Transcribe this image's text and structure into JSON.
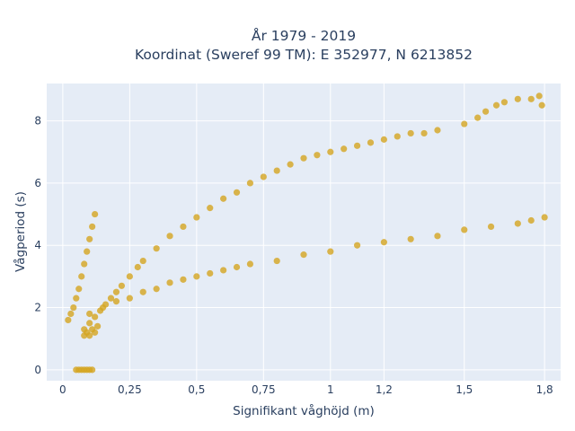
{
  "chart_data": {
    "type": "scatter",
    "title": "År 1979 - 2019",
    "subtitle": "Koordinat (Sweref 99 TM): E 352977, N 6213852",
    "xlabel": "Signifikant våghöjd (m)",
    "ylabel": "Vågperiod (s)",
    "xlim": [
      -0.06,
      1.86
    ],
    "ylim": [
      -0.35,
      9.2
    ],
    "x_ticks": [
      0,
      0.25,
      0.5,
      0.75,
      1,
      1.2,
      1.5,
      1.8
    ],
    "x_tick_labels": [
      "0",
      "0,25",
      "0,5",
      "0,75",
      "1",
      "1,2",
      "1,5",
      "1,8"
    ],
    "y_ticks": [
      0,
      2,
      4,
      6,
      8
    ],
    "y_tick_labels": [
      "0",
      "2",
      "4",
      "6",
      "8"
    ],
    "grid": true,
    "legend": "none",
    "marker_color": "#D4A520",
    "plot_bg": "#E5ECF6",
    "series": [
      {
        "note_points": "Representative sampled points across the dense clusters",
        "x": [
          0.02,
          0.03,
          0.04,
          0.05,
          0.06,
          0.07,
          0.08,
          0.09,
          0.1,
          0.11,
          0.12,
          0.05,
          0.06,
          0.07,
          0.08,
          0.09,
          0.1,
          0.11,
          0.08,
          0.1,
          0.12,
          0.14,
          0.16,
          0.18,
          0.2,
          0.22,
          0.25,
          0.28,
          0.3,
          0.35,
          0.4,
          0.45,
          0.5,
          0.55,
          0.6,
          0.65,
          0.7,
          0.75,
          0.8,
          0.85,
          0.9,
          0.95,
          1.0,
          1.05,
          1.1,
          1.15,
          1.2,
          1.25,
          1.3,
          1.35,
          1.4,
          0.1,
          0.15,
          0.2,
          0.25,
          0.3,
          0.35,
          0.4,
          0.45,
          0.5,
          0.55,
          0.6,
          0.65,
          0.7,
          0.8,
          0.9,
          1.0,
          1.1,
          1.2,
          1.3,
          1.4,
          1.5,
          1.6,
          1.7,
          1.75,
          1.8,
          1.5,
          1.55,
          1.58,
          1.62,
          1.65,
          1.7,
          1.75,
          1.78,
          1.79,
          0.08,
          0.09,
          0.1,
          0.11,
          0.12,
          0.13
        ],
        "y": [
          1.6,
          1.8,
          2.0,
          2.3,
          2.6,
          3.0,
          3.4,
          3.8,
          4.2,
          4.6,
          5.0,
          0.0,
          0.0,
          0.0,
          0.0,
          0.0,
          0.0,
          0.0,
          1.3,
          1.5,
          1.7,
          1.9,
          2.1,
          2.3,
          2.5,
          2.7,
          3.0,
          3.3,
          3.5,
          3.9,
          4.3,
          4.6,
          4.9,
          5.2,
          5.5,
          5.7,
          6.0,
          6.2,
          6.4,
          6.6,
          6.8,
          6.9,
          7.0,
          7.1,
          7.2,
          7.3,
          7.4,
          7.5,
          7.6,
          7.6,
          7.7,
          1.8,
          2.0,
          2.2,
          2.3,
          2.5,
          2.6,
          2.8,
          2.9,
          3.0,
          3.1,
          3.2,
          3.3,
          3.4,
          3.5,
          3.7,
          3.8,
          4.0,
          4.1,
          4.2,
          4.3,
          4.5,
          4.6,
          4.7,
          4.8,
          4.9,
          7.9,
          8.1,
          8.3,
          8.5,
          8.6,
          8.7,
          8.7,
          8.8,
          8.5,
          1.1,
          1.2,
          1.1,
          1.3,
          1.2,
          1.4
        ]
      }
    ]
  }
}
